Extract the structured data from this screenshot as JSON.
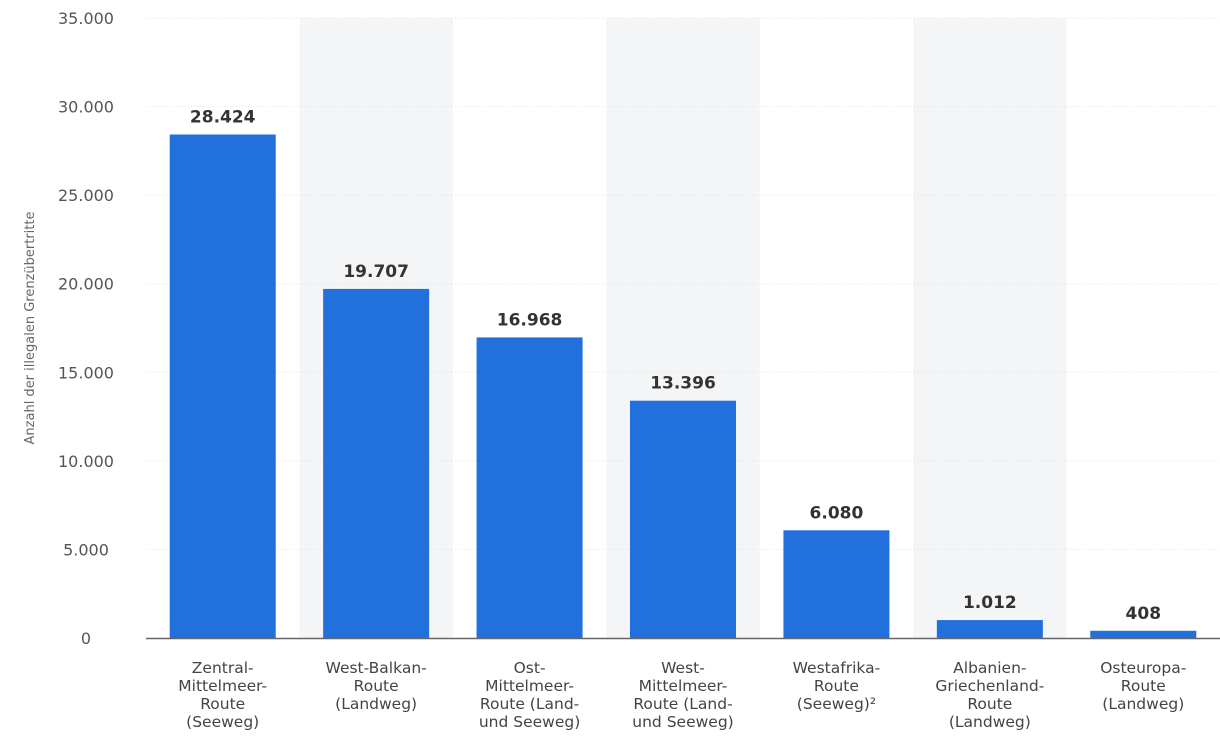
{
  "chart_data": {
    "type": "bar",
    "title": "",
    "xlabel": "",
    "ylabel": "Anzahl der illegalen Grenzübertritte",
    "categories": [
      [
        "Zentral-",
        "Mittelmeer-",
        "Route",
        "(Seeweg)"
      ],
      [
        "West-Balkan-",
        "Route",
        "(Landweg)"
      ],
      [
        "Ost-",
        "Mittelmeer-",
        "Route (Land-",
        "und Seeweg)"
      ],
      [
        "West-",
        "Mittelmeer-",
        "Route (Land-",
        "und Seeweg)"
      ],
      [
        "Westafrika-",
        "Route",
        "(Seeweg)²"
      ],
      [
        "Albanien-",
        "Griechenland-",
        "Route",
        "(Landweg)"
      ],
      [
        "Osteuropa-",
        "Route",
        "(Landweg)"
      ]
    ],
    "values": [
      28424,
      19707,
      16968,
      13396,
      6080,
      1012,
      408
    ],
    "value_labels": [
      "28.424",
      "19.707",
      "16.968",
      "13.396",
      "6.080",
      "1.012",
      "408"
    ],
    "ylim": [
      0,
      35000
    ],
    "yticks": [
      0,
      5000,
      10000,
      15000,
      20000,
      25000,
      30000,
      35000
    ],
    "ytick_labels": [
      "0",
      "5.000",
      "10.000",
      "15.000",
      "20.000",
      "25.000",
      "30.000",
      "35.000"
    ],
    "grid": true,
    "legend": "none",
    "colors": {
      "bar": "#2270dc",
      "band": "#f4f5f7",
      "grid": "#e2e2e2",
      "baseline": "#666666"
    }
  }
}
